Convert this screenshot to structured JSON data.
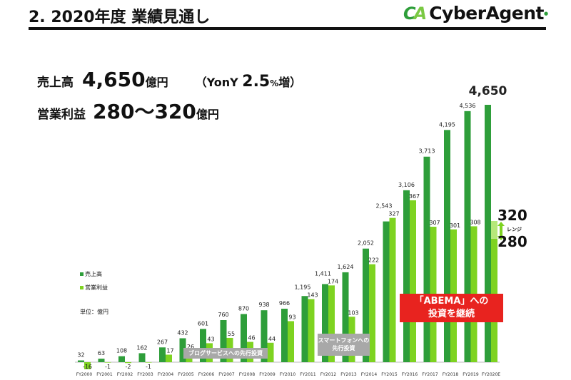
{
  "header": {
    "title": "2. 2020年度 業績見通し",
    "logo_mark": "CA",
    "logo_text": "CyberAgent"
  },
  "headline": {
    "sales_label": "売上高",
    "sales_value": "4,650",
    "sales_unit": "億円",
    "yoy_prefix": "（YonY",
    "yoy_value": "2.5",
    "yoy_suffix": "%",
    "yoy_word": "増）",
    "op_label": "営業利益",
    "op_value": "280〜320",
    "op_unit": "億円"
  },
  "legend": {
    "sales": "売上高",
    "op": "営業利益",
    "unit": "単位：億円"
  },
  "notes": {
    "blog": "ブログサービスへの先行投資",
    "smartphone_1": "スマートフォンへの",
    "smartphone_2": "先行投資",
    "abema_1": "「ABEMA」への",
    "abema_2": "投資を継続"
  },
  "range": {
    "high": "320",
    "low": "280",
    "label": "レンジ"
  },
  "colors": {
    "sales": "#2e9e3a",
    "op": "#7ed321",
    "note": "#a8a8a8",
    "red": "#e8231f"
  },
  "chart_data": {
    "type": "bar",
    "categories": [
      "FY2000",
      "FY2001",
      "FY2002",
      "FY2003",
      "FY2004",
      "FY2005",
      "FY2006",
      "FY2007",
      "FY2008",
      "FY2009",
      "FY2010",
      "FY2011",
      "FY2012",
      "FY2013",
      "FY2014",
      "FY2015",
      "FY2016",
      "FY2017",
      "FY2018",
      "FY2019",
      "FY2020E"
    ],
    "series": [
      {
        "name": "売上高",
        "values": [
          32,
          63,
          108,
          162,
          267,
          432,
          601,
          760,
          870,
          938,
          966,
          1195,
          1411,
          1624,
          2052,
          2543,
          3106,
          3713,
          4195,
          4536,
          4650
        ],
        "labels": [
          "32",
          "63",
          "108",
          "162",
          "267",
          "432",
          "601",
          "760",
          "870",
          "938",
          "966",
          "1,195",
          "1,411",
          "1,624",
          "2,052",
          "2,543",
          "3,106",
          "3,713",
          "4,195",
          "4,536",
          "4,650"
        ]
      },
      {
        "name": "営業利益",
        "values": [
          -16,
          -1,
          -2,
          -1,
          17,
          26,
          43,
          55,
          46,
          44,
          93,
          143,
          174,
          103,
          222,
          327,
          367,
          307,
          301,
          308,
          320
        ],
        "labels": [
          "-16",
          "-1",
          "-2",
          "-1",
          "17",
          "26",
          "43",
          "55",
          "46",
          "44",
          "93",
          "143",
          "174",
          "103",
          "222",
          "327",
          "367",
          "307",
          "301",
          "308",
          ""
        ],
        "forecast_range": [
          280,
          320
        ]
      }
    ],
    "unit": "億円"
  }
}
